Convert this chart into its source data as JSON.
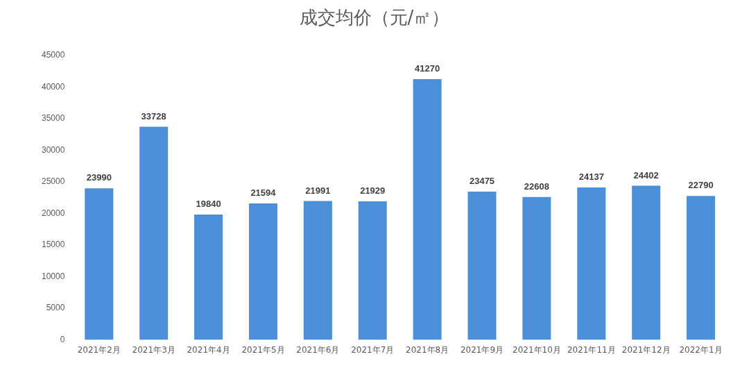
{
  "chart_data": {
    "type": "bar",
    "title": "成交均价（元/㎡）",
    "categories": [
      "2021年2月",
      "2021年3月",
      "2021年4月",
      "2021年5月",
      "2021年6月",
      "2021年7月",
      "2021年8月",
      "2021年9月",
      "2021年10月",
      "2021年11月",
      "2021年12月",
      "2022年1月"
    ],
    "values": [
      23990,
      33728,
      19840,
      21594,
      21991,
      21929,
      41270,
      23475,
      22608,
      24137,
      24402,
      22790
    ],
    "color": "#4a8fd8",
    "ylim": [
      0,
      45000
    ],
    "yticks": [
      0,
      5000,
      10000,
      15000,
      20000,
      25000,
      30000,
      35000,
      40000,
      45000
    ],
    "grid": false,
    "legend": false,
    "data_labels": true
  }
}
